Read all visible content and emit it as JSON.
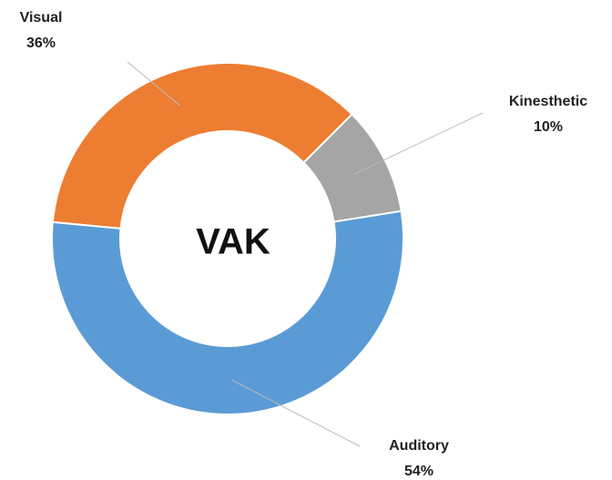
{
  "chart_data": {
    "type": "donut",
    "title": "VAK",
    "categories": [
      "Visual",
      "Kinesthetic",
      "Auditory"
    ],
    "values": [
      36,
      10,
      54
    ],
    "value_labels": [
      "36%",
      "10%",
      "54%"
    ],
    "colors": [
      "#ed7d31",
      "#a5a5a5",
      "#5b9bd5"
    ]
  }
}
